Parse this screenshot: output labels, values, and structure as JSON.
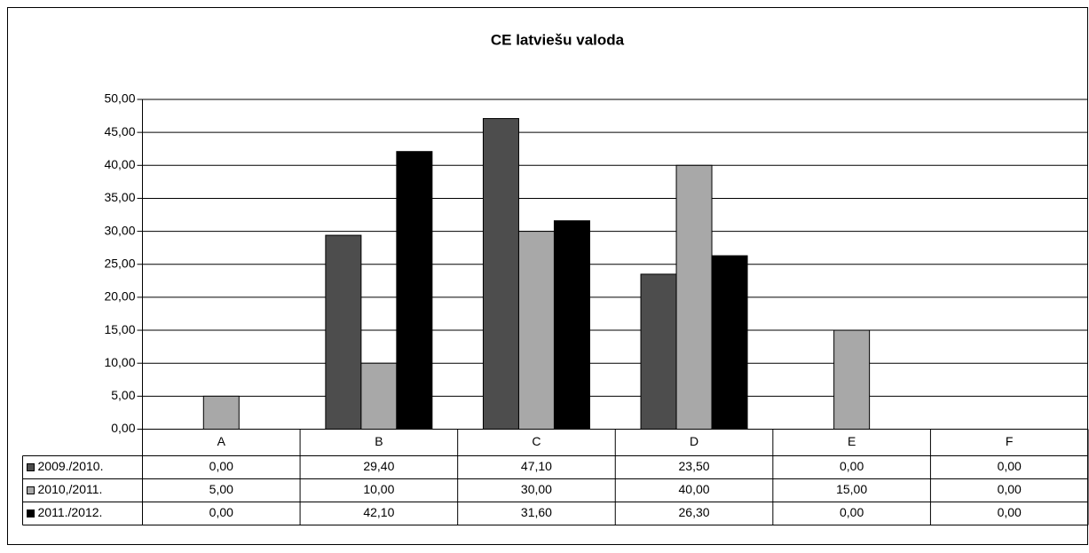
{
  "chart_data": {
    "type": "bar",
    "title": "CE latviešu valoda",
    "categories": [
      "A",
      "B",
      "C",
      "D",
      "E",
      "F"
    ],
    "series": [
      {
        "name": "2009./2010.",
        "color": "#4d4d4d",
        "values": [
          0,
          29.4,
          47.1,
          23.5,
          0,
          0
        ],
        "value_labels": [
          "0,00",
          "29,40",
          "47,10",
          "23,50",
          "0,00",
          "0,00"
        ]
      },
      {
        "name": "2010,/2011.",
        "color": "#a8a8a8",
        "values": [
          5,
          10,
          30,
          40,
          15,
          0
        ],
        "value_labels": [
          "5,00",
          "10,00",
          "30,00",
          "40,00",
          "15,00",
          "0,00"
        ]
      },
      {
        "name": "2011./2012.",
        "color": "#000000",
        "values": [
          0,
          42.1,
          31.6,
          26.3,
          0,
          0
        ],
        "value_labels": [
          "0,00",
          "42,10",
          "31,60",
          "26,30",
          "0,00",
          "0,00"
        ]
      }
    ],
    "ylim": [
      0,
      50
    ],
    "yticks": [
      {
        "value": 0,
        "label": "0,00"
      },
      {
        "value": 5,
        "label": "5,00"
      },
      {
        "value": 10,
        "label": "10,00"
      },
      {
        "value": 15,
        "label": "15,00"
      },
      {
        "value": 20,
        "label": "20,00"
      },
      {
        "value": 25,
        "label": "25,00"
      },
      {
        "value": 30,
        "label": "30,00"
      },
      {
        "value": 35,
        "label": "35,00"
      },
      {
        "value": 40,
        "label": "40,00"
      },
      {
        "value": 45,
        "label": "45,00"
      },
      {
        "value": 50,
        "label": "50,00"
      }
    ],
    "grid": true
  }
}
